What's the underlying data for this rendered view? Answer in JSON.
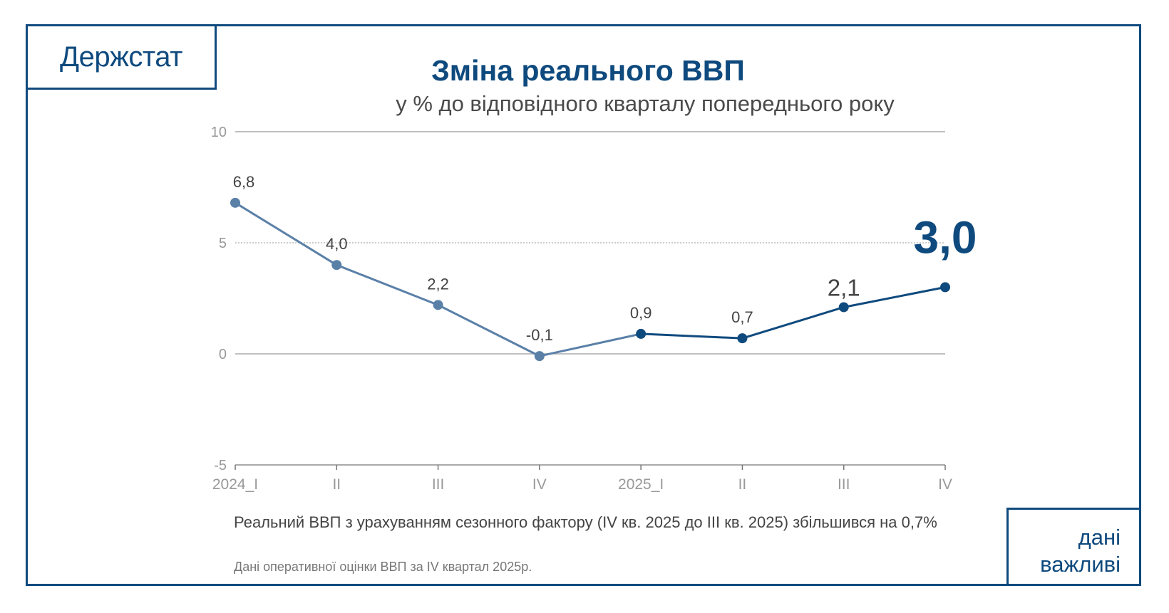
{
  "logo": "Держстат",
  "badge": {
    "line1": "дані",
    "line2": "важливі"
  },
  "chart_data": {
    "type": "line",
    "title": "Зміна реального ВВП",
    "subtitle": "у % до відповідного кварталу попереднього року",
    "categories": [
      "2024_I",
      "II",
      "III",
      "IV",
      "2025_I",
      "II",
      "III",
      "IV"
    ],
    "values": [
      6.8,
      4.0,
      2.2,
      -0.1,
      0.9,
      0.7,
      2.1,
      3.0
    ],
    "data_labels": [
      "6,8",
      "4,0",
      "2,2",
      "-0,1",
      "0,9",
      "0,7",
      "2,1",
      "3,0"
    ],
    "ylim": [
      -5,
      10
    ],
    "yticks": [
      10,
      5,
      0,
      -5
    ],
    "ytick_labels": [
      "10",
      "5",
      "0",
      "-5"
    ],
    "grid": true,
    "colors": {
      "past": "#5a80a8",
      "recent": "#0f4a7e",
      "label": "#444444",
      "axis": "#999999"
    }
  },
  "notes": {
    "seasonal": "Реальний ВВП з урахуванням сезонного фактору (IV кв. 2025 до III кв. 2025) збільшився на 0,7%",
    "source": "Дані оперативної оцінки ВВП за IV квартал 2025р."
  }
}
